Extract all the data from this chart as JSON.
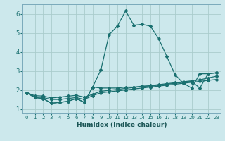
{
  "title": "",
  "xlabel": "Humidex (Indice chaleur)",
  "ylabel": "",
  "background_color": "#cce8ec",
  "grid_color": "#aacccc",
  "line_color": "#1a7070",
  "xlim": [
    -0.5,
    23.5
  ],
  "ylim": [
    0.8,
    6.5
  ],
  "yticks": [
    1,
    2,
    3,
    4,
    5,
    6
  ],
  "xtick_labels": [
    "0",
    "1",
    "2",
    "3",
    "4",
    "5",
    "6",
    "7",
    "8",
    "9",
    "10",
    "11",
    "12",
    "13",
    "14",
    "15",
    "16",
    "17",
    "18",
    "19",
    "20",
    "21",
    "22",
    "23"
  ],
  "series": [
    [
      1.85,
      1.6,
      1.55,
      1.3,
      1.35,
      1.4,
      1.55,
      1.35,
      2.15,
      3.05,
      4.9,
      5.35,
      6.15,
      5.4,
      5.45,
      5.35,
      4.7,
      3.75,
      2.8,
      2.35,
      2.1,
      2.85,
      2.85,
      2.9
    ],
    [
      1.85,
      1.6,
      1.55,
      1.3,
      1.35,
      1.4,
      1.55,
      1.35,
      2.15,
      2.1,
      2.1,
      2.1,
      2.15,
      2.15,
      2.2,
      2.2,
      2.25,
      2.3,
      2.35,
      2.4,
      2.45,
      2.1,
      2.85,
      2.9
    ],
    [
      1.85,
      1.65,
      1.6,
      1.5,
      1.5,
      1.55,
      1.6,
      1.5,
      1.7,
      1.85,
      1.9,
      1.95,
      2.0,
      2.05,
      2.1,
      2.15,
      2.2,
      2.25,
      2.3,
      2.35,
      2.4,
      2.45,
      2.5,
      2.55
    ],
    [
      1.85,
      1.7,
      1.68,
      1.58,
      1.62,
      1.67,
      1.72,
      1.62,
      1.77,
      1.93,
      1.98,
      2.03,
      2.08,
      2.13,
      2.18,
      2.23,
      2.28,
      2.33,
      2.38,
      2.43,
      2.48,
      2.53,
      2.63,
      2.72
    ]
  ]
}
